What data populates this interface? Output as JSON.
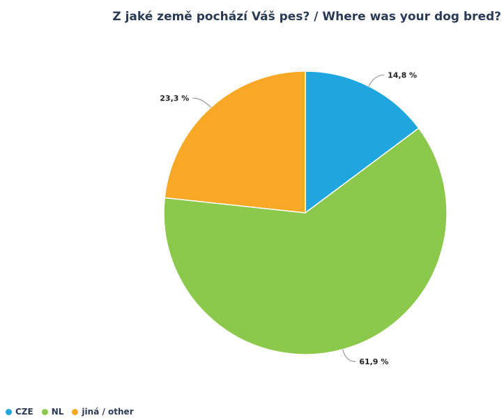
{
  "chart_data": {
    "type": "pie",
    "title": "Z jaké země pochází Váš pes? / Where was your dog bred?",
    "slices": [
      {
        "name": "CZE",
        "value": 14.8,
        "label": "14,8 %",
        "color": "#1fa6df"
      },
      {
        "name": "NL",
        "value": 61.9,
        "label": "61,9 %",
        "color": "#8cc84b"
      },
      {
        "name": "jiná / other",
        "value": 23.3,
        "label": "23,3 %",
        "color": "#f9a825"
      }
    ],
    "legend_position": "bottom-left"
  }
}
